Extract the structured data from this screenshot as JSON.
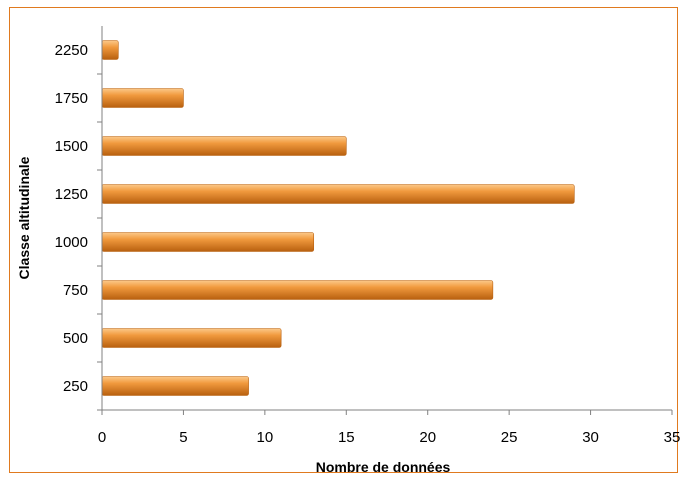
{
  "chart_data": {
    "type": "bar",
    "orientation": "horizontal",
    "categories": [
      "250",
      "500",
      "750",
      "1000",
      "1250",
      "1500",
      "1750",
      "2250"
    ],
    "values": [
      9,
      11,
      24,
      13,
      29,
      15,
      5,
      1
    ],
    "title": "",
    "xlabel": "Nombre de données",
    "ylabel": "Classe altitudinale",
    "xlim": [
      0,
      35
    ],
    "xticks": [
      "0",
      "5",
      "10",
      "15",
      "20",
      "25",
      "30",
      "35"
    ],
    "grid": false,
    "legend": "none",
    "colors": {
      "bar_light": "#FCC98A",
      "bar_mid": "#F19A3E",
      "bar_dark": "#B8600F",
      "frame": "#E07A1F"
    }
  }
}
